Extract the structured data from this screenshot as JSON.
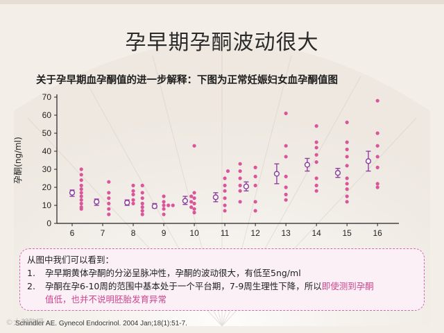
{
  "title": "孕早期孕酮波动很大",
  "subtitle": "关于孕早期血孕酮值的进一步解释：下图为正常妊娠妇女血孕酮值图",
  "notes": {
    "intro": "从图中我们可以看到：",
    "items": [
      {
        "num": "1.",
        "text": "孕早期黄体孕酮的分泌呈脉冲性，孕酮的波动很大，有低至5ng/ml"
      },
      {
        "num": "2.",
        "text_a": "孕酮在孕6-10周的范围中基本处于一个平台期，7-9周生理性下降，所以",
        "text_highlight": "即使测到孕酮",
        "text_b": "值低，也并不说明胚胎发育异常"
      }
    ]
  },
  "source": "Schindler AE. Gynecol Endocrinol. 2004 Jan;18(1):51-7.",
  "watermark": "©大部整理",
  "colors": {
    "point": "#d9569a",
    "mean": "#8e3fa0",
    "axis": "#222222"
  },
  "chart_data": {
    "type": "scatter",
    "title": "",
    "xlabel": "",
    "ylabel": "孕酮(ng/ml)",
    "xlim": [
      5.5,
      16.7
    ],
    "ylim": [
      0,
      70
    ],
    "yticks": [
      0,
      10,
      20,
      30,
      40,
      50,
      60,
      70
    ],
    "xticks": [
      6,
      7,
      8,
      9,
      10,
      11,
      12,
      13,
      14,
      15,
      16
    ],
    "grid": false,
    "series": [
      {
        "marker": "filled-dot",
        "points": [
          [
            6.3,
            30
          ],
          [
            6.3,
            27
          ],
          [
            6.3,
            24
          ],
          [
            6.3,
            21
          ],
          [
            6.3,
            19
          ],
          [
            6.3,
            17
          ],
          [
            6.3,
            15
          ],
          [
            6.3,
            13
          ],
          [
            6.3,
            11
          ],
          [
            6.3,
            9
          ],
          [
            6.3,
            8
          ],
          [
            7.2,
            23
          ],
          [
            7.2,
            17
          ],
          [
            7.2,
            14
          ],
          [
            7.2,
            11
          ],
          [
            7.2,
            8
          ],
          [
            7.2,
            5
          ],
          [
            8.0,
            21
          ],
          [
            8.0,
            18
          ],
          [
            8.0,
            16
          ],
          [
            8.0,
            13
          ],
          [
            8.0,
            11
          ],
          [
            8.3,
            21
          ],
          [
            8.3,
            17
          ],
          [
            8.3,
            14
          ],
          [
            8.3,
            11
          ],
          [
            8.3,
            9
          ],
          [
            8.3,
            7
          ],
          [
            8.3,
            5
          ],
          [
            9.0,
            15
          ],
          [
            9.0,
            12
          ],
          [
            9.0,
            10
          ],
          [
            9.0,
            8
          ],
          [
            9.0,
            5
          ],
          [
            9.15,
            10
          ],
          [
            9.3,
            10
          ],
          [
            9.9,
            15
          ],
          [
            9.9,
            12
          ],
          [
            9.9,
            9
          ],
          [
            10.0,
            43
          ],
          [
            10.0,
            17
          ],
          [
            10.0,
            14
          ],
          [
            10.0,
            11
          ],
          [
            10.0,
            8
          ],
          [
            10.0,
            6
          ],
          [
            11.0,
            25
          ],
          [
            11.0,
            21
          ],
          [
            11.0,
            18
          ],
          [
            11.0,
            14
          ],
          [
            11.0,
            10
          ],
          [
            11.0,
            7
          ],
          [
            11.5,
            33
          ],
          [
            11.5,
            29
          ],
          [
            11.5,
            25
          ],
          [
            11.5,
            21
          ],
          [
            11.5,
            18
          ],
          [
            11.5,
            12
          ],
          [
            11.1,
            29
          ],
          [
            12.0,
            31
          ],
          [
            12.0,
            26
          ],
          [
            12.0,
            21
          ],
          [
            12.0,
            12
          ],
          [
            12.0,
            7
          ],
          [
            13.0,
            61
          ],
          [
            13.0,
            43
          ],
          [
            13.0,
            37
          ],
          [
            13.0,
            26
          ],
          [
            13.0,
            20
          ],
          [
            13.0,
            16
          ],
          [
            13.0,
            13
          ],
          [
            14.0,
            54
          ],
          [
            14.0,
            45
          ],
          [
            14.0,
            42
          ],
          [
            14.0,
            38
          ],
          [
            14.0,
            34
          ],
          [
            14.0,
            25
          ],
          [
            14.0,
            21
          ],
          [
            14.0,
            18
          ],
          [
            15.0,
            56
          ],
          [
            15.0,
            45
          ],
          [
            15.0,
            41
          ],
          [
            15.0,
            37
          ],
          [
            15.0,
            32
          ],
          [
            15.0,
            25
          ],
          [
            15.0,
            22
          ],
          [
            15.0,
            19
          ],
          [
            15.0,
            15
          ],
          [
            15.0,
            12
          ],
          [
            16.0,
            68
          ],
          [
            16.0,
            50
          ],
          [
            16.0,
            43
          ],
          [
            16.0,
            37
          ],
          [
            16.0,
            31
          ],
          [
            16.0,
            22
          ],
          [
            16.0,
            20
          ]
        ]
      },
      {
        "marker": "open-circle-errorbar",
        "points": [
          {
            "x": 6.0,
            "mean": 17,
            "low": 15,
            "high": 18.5
          },
          {
            "x": 6.8,
            "mean": 12,
            "low": 10,
            "high": 13.5
          },
          {
            "x": 7.8,
            "mean": 11.5,
            "low": 10,
            "high": 13
          },
          {
            "x": 8.7,
            "mean": 9.5,
            "low": 8.5,
            "high": 11
          },
          {
            "x": 9.7,
            "mean": 12.5,
            "low": 10.5,
            "high": 15
          },
          {
            "x": 10.7,
            "mean": 14.5,
            "low": 12,
            "high": 17
          },
          {
            "x": 11.7,
            "mean": 20.5,
            "low": 18,
            "high": 23
          },
          {
            "x": 12.7,
            "mean": 27.5,
            "low": 22,
            "high": 33
          },
          {
            "x": 13.7,
            "mean": 32.5,
            "low": 29,
            "high": 36
          },
          {
            "x": 14.7,
            "mean": 28,
            "low": 25.5,
            "high": 30.5
          },
          {
            "x": 15.7,
            "mean": 34.5,
            "low": 29,
            "high": 40
          }
        ]
      }
    ]
  }
}
